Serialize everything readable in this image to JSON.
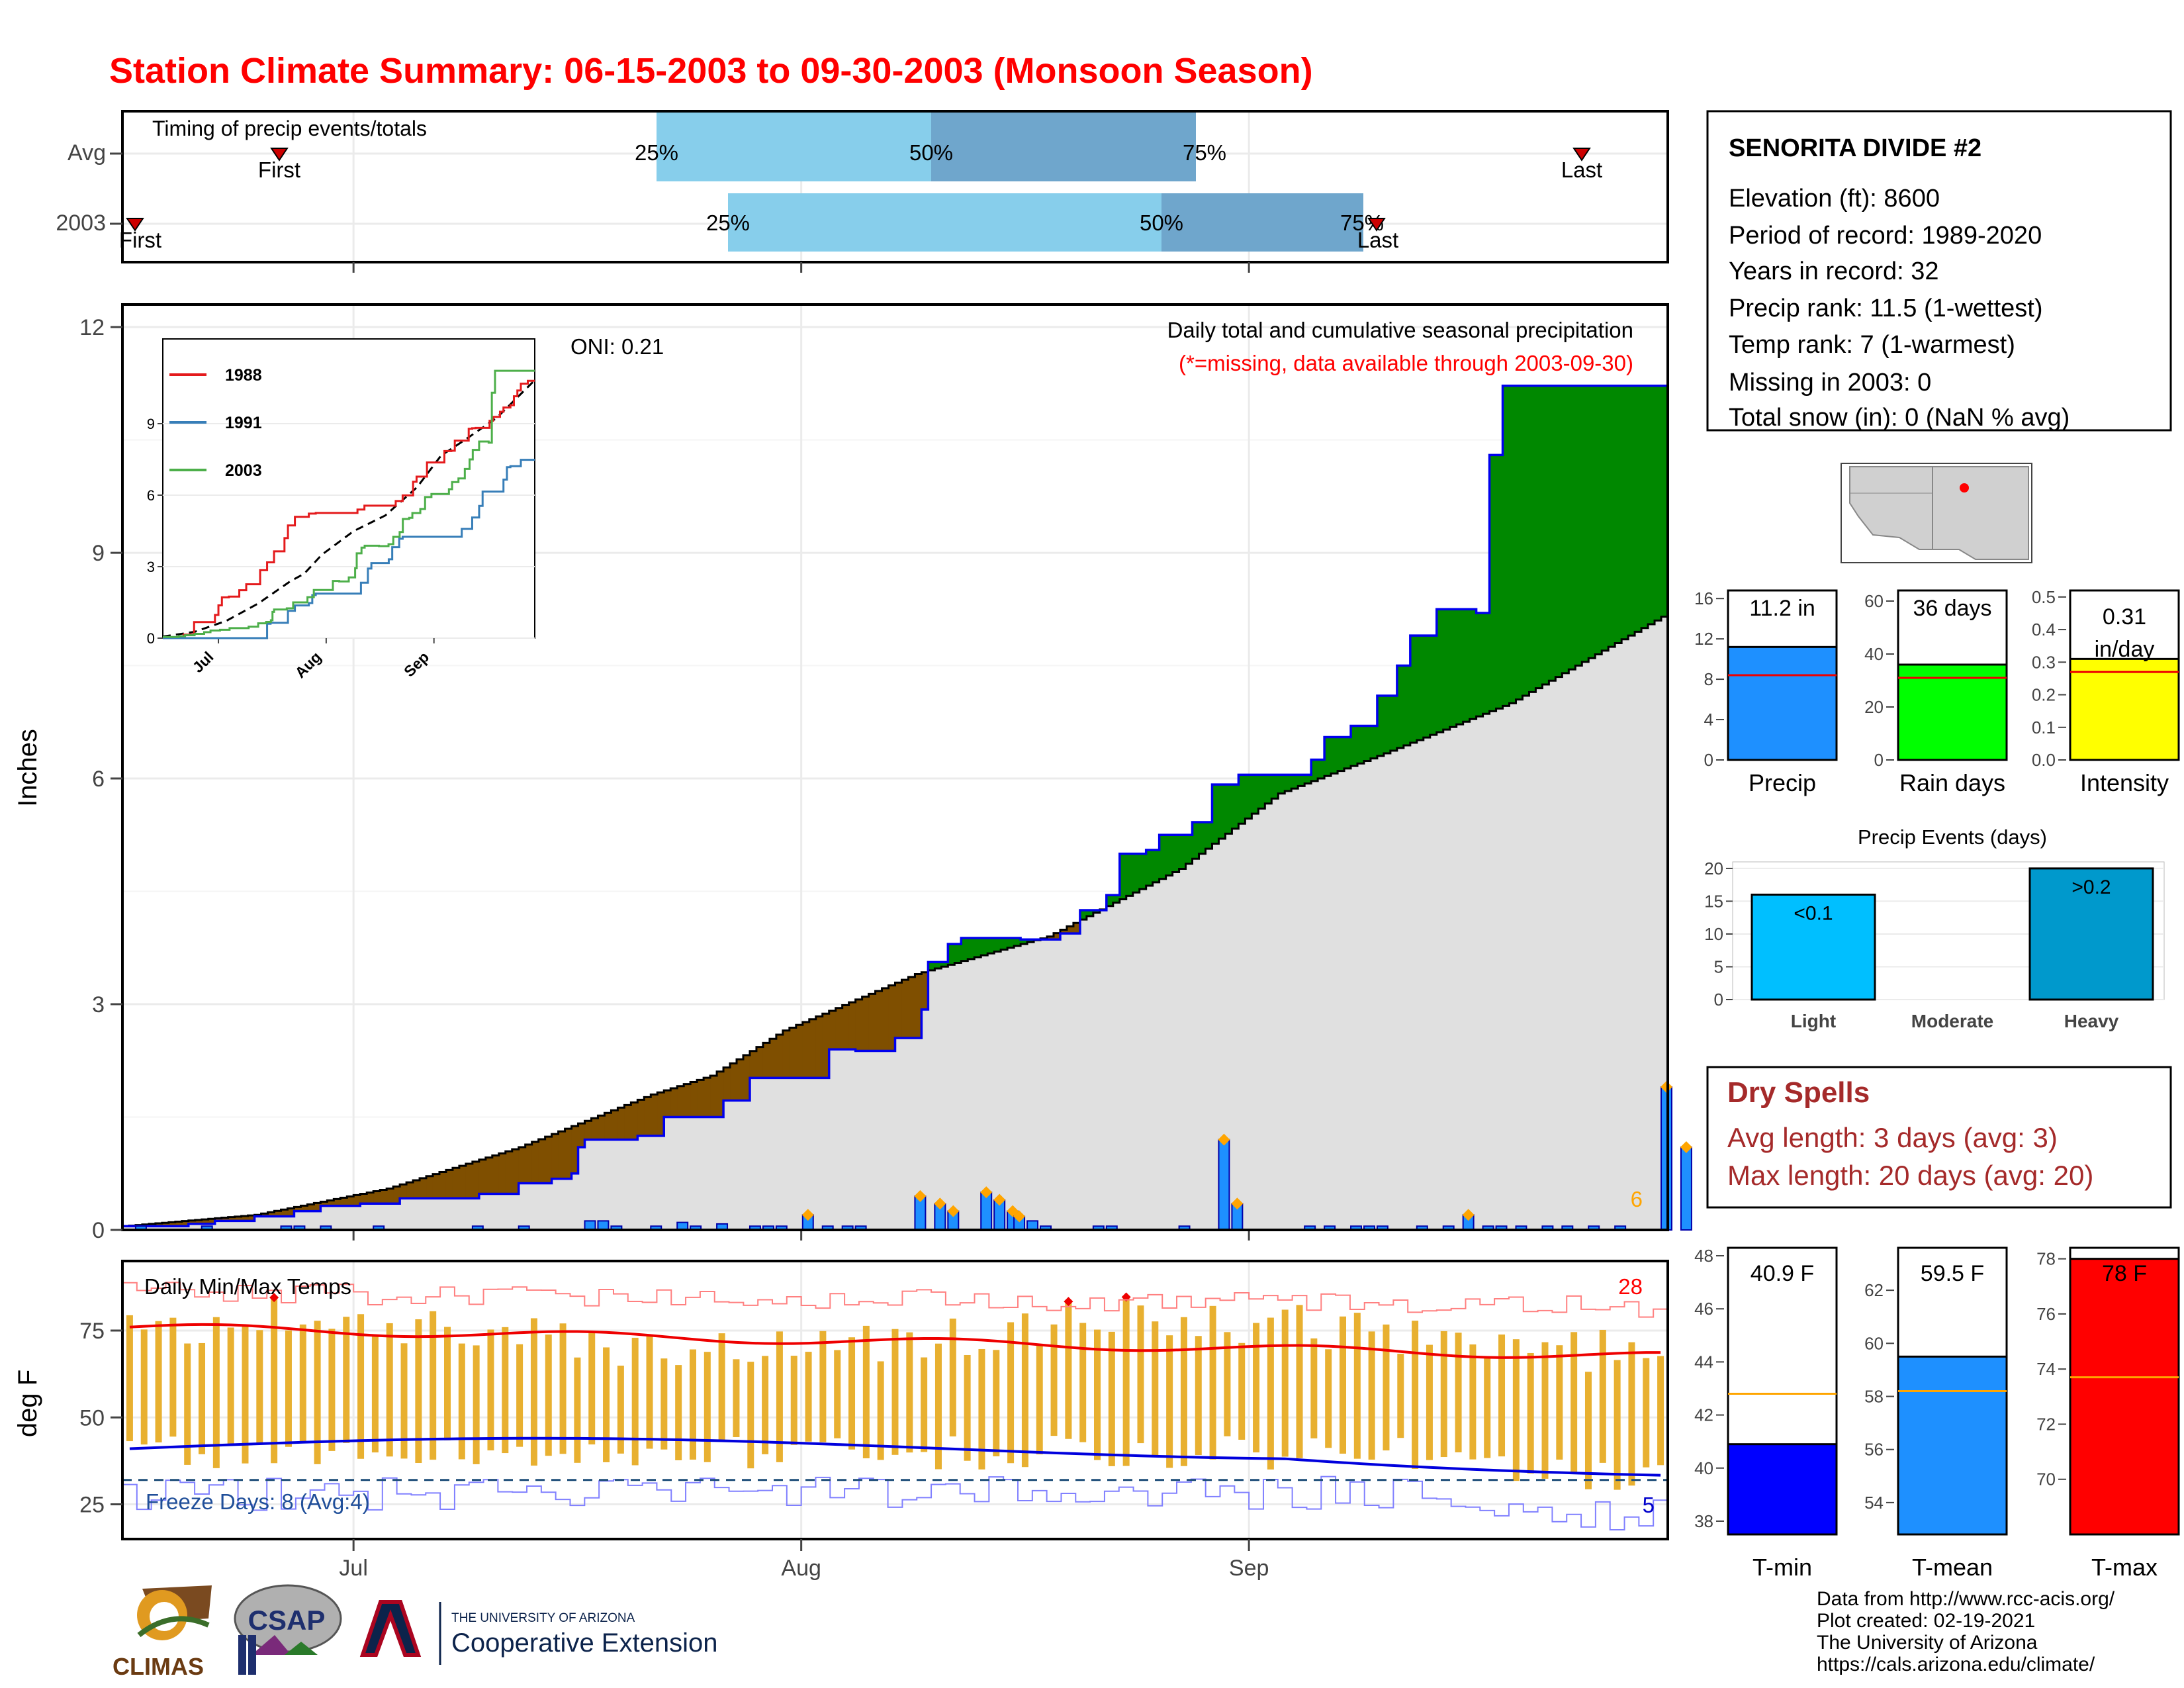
{
  "title": "Station Climate Summary: 06-15-2003 to 09-30-2003 (Monsoon Season)",
  "timing_panel": {
    "label": "Timing of precip events/totals",
    "rows": [
      "Avg",
      "2003"
    ],
    "pct_labels": [
      "25%",
      "50%",
      "75%"
    ],
    "first_label": "First",
    "last_label": "Last"
  },
  "main_panel": {
    "ylabel": "Inches",
    "yticks": [
      "0",
      "3",
      "6",
      "9",
      "12"
    ],
    "oni": "ONI: 0.21",
    "desc": "Daily total and cumulative seasonal precipitation",
    "missing_note": "(*=missing, data available through 2003-09-30)",
    "corner_count": "6"
  },
  "inset": {
    "legend": [
      "1988",
      "1991",
      "2003"
    ],
    "yticks": [
      "0",
      "3",
      "6",
      "9"
    ],
    "xticks": [
      "Jul",
      "Aug",
      "Sep"
    ]
  },
  "temp_panel": {
    "ylabel": "deg F",
    "label": "Daily Min/Max Temps",
    "yticks": [
      "25",
      "50",
      "75"
    ],
    "freeze": "Freeze Days: 8 (Avg:4)",
    "max_count": "28",
    "min_count": "5"
  },
  "xticks": [
    "Jul",
    "Aug",
    "Sep"
  ],
  "station": {
    "name": "SENORITA DIVIDE #2",
    "lines": [
      "Elevation (ft): 8600",
      "Period of record: 1989-2020",
      "Years in record: 32",
      "Precip rank: 11.5 (1-wettest)",
      "Temp rank: 7 (1-warmest)",
      "Missing in 2003: 0",
      "Total snow (in): 0 (NaN % avg)"
    ]
  },
  "summary_bars": {
    "precip": {
      "label": "Precip",
      "value_label": "11.2 in",
      "yticks": [
        "0",
        "4",
        "8",
        "12",
        "16"
      ],
      "color": "#1E90FF"
    },
    "raindays": {
      "label": "Rain days",
      "value_label": "36 days",
      "yticks": [
        "0",
        "20",
        "40",
        "60"
      ],
      "color": "#00FF00"
    },
    "intensity": {
      "label": "Intensity",
      "value_label": "0.31",
      "value_label2": "in/day",
      "yticks": [
        "0.0",
        "0.1",
        "0.2",
        "0.3",
        "0.4",
        "0.5"
      ],
      "color": "#FFFF00"
    }
  },
  "events": {
    "title": "Precip Events (days)",
    "yticks": [
      "0",
      "5",
      "10",
      "15",
      "20"
    ],
    "cats": [
      "Light",
      "Moderate",
      "Heavy"
    ],
    "labels": [
      "<0.1",
      "",
      ">0.2"
    ]
  },
  "dry": {
    "title": "Dry Spells",
    "avg": "Avg length: 3 days (avg: 3)",
    "max": "Max length: 20 days (avg: 20)"
  },
  "temp_bars": {
    "tmin": {
      "label": "T-min",
      "value_label": "40.9 F",
      "yticks": [
        "38",
        "40",
        "42",
        "44",
        "46",
        "48"
      ]
    },
    "tmean": {
      "label": "T-mean",
      "value_label": "59.5 F",
      "yticks": [
        "54",
        "56",
        "58",
        "60",
        "62"
      ]
    },
    "tmax": {
      "label": "T-max",
      "value_label": "78 F",
      "yticks": [
        "70",
        "72",
        "74",
        "76",
        "78"
      ]
    }
  },
  "credits": [
    "Data from http://www.rcc-acis.org/",
    "Plot created: 02-19-2021",
    "The University of Arizona",
    "https://cals.arizona.edu/climate/"
  ],
  "logos": {
    "climas": "CLIMAS",
    "csap": "CSAP",
    "ua_small": "THE UNIVERSITY OF ARIZONA",
    "ua_big": "Cooperative Extension"
  },
  "chart_data": [
    {
      "type": "area",
      "name": "cumulative_precip",
      "xlim": [
        "2003-06-15",
        "2003-09-30"
      ],
      "ylim": [
        0,
        12.3
      ],
      "observed_cumulative": [
        [
          0,
          0.05
        ],
        [
          10,
          0.08
        ],
        [
          14,
          0.12
        ],
        [
          20,
          0.18
        ],
        [
          26,
          0.25
        ],
        [
          30,
          0.32
        ],
        [
          36,
          0.35
        ],
        [
          42,
          0.42
        ],
        [
          54,
          0.48
        ],
        [
          60,
          0.62
        ],
        [
          65,
          0.68
        ],
        [
          68,
          0.75
        ],
        [
          69,
          1.1
        ],
        [
          70,
          1.2
        ],
        [
          78,
          1.25
        ],
        [
          82,
          1.5
        ],
        [
          91,
          1.72
        ],
        [
          95,
          2.02
        ],
        [
          107,
          2.4
        ],
        [
          111,
          2.38
        ],
        [
          117,
          2.55
        ],
        [
          121,
          2.93
        ],
        [
          122,
          3.56
        ],
        [
          125,
          3.8
        ],
        [
          127,
          3.88
        ],
        [
          136,
          3.86
        ],
        [
          142,
          3.94
        ],
        [
          145,
          4.25
        ],
        [
          149,
          4.45
        ],
        [
          151,
          5.0
        ],
        [
          155,
          5.05
        ],
        [
          157,
          5.25
        ],
        [
          162,
          5.42
        ],
        [
          165,
          5.92
        ],
        [
          169,
          6.05
        ],
        [
          176,
          6.05
        ],
        [
          180,
          6.25
        ],
        [
          182,
          6.55
        ],
        [
          186,
          6.7
        ],
        [
          190,
          7.1
        ],
        [
          193,
          7.5
        ],
        [
          195,
          7.9
        ],
        [
          199,
          8.25
        ],
        [
          205,
          8.2
        ],
        [
          207,
          10.3
        ],
        [
          209,
          11.22
        ],
        [
          234,
          11.22
        ]
      ],
      "avg_cumulative": [
        [
          0,
          0.05
        ],
        [
          20,
          0.2
        ],
        [
          40,
          0.55
        ],
        [
          60,
          1.1
        ],
        [
          80,
          1.8
        ],
        [
          89,
          2.05
        ],
        [
          100,
          2.65
        ],
        [
          120,
          3.4
        ],
        [
          140,
          3.9
        ],
        [
          160,
          4.8
        ],
        [
          175,
          5.8
        ],
        [
          190,
          6.3
        ],
        [
          210,
          7.0
        ],
        [
          234,
          8.2
        ]
      ],
      "daily_precip": [
        [
          2,
          0.05
        ],
        [
          12,
          0.05
        ],
        [
          24,
          0.05
        ],
        [
          26,
          0.05
        ],
        [
          30,
          0.05
        ],
        [
          38,
          0.05
        ],
        [
          53,
          0.05
        ],
        [
          60,
          0.05
        ],
        [
          70,
          0.12
        ],
        [
          72,
          0.12
        ],
        [
          74,
          0.05
        ],
        [
          80,
          0.05
        ],
        [
          84,
          0.1
        ],
        [
          86,
          0.05
        ],
        [
          90,
          0.08
        ],
        [
          95,
          0.05
        ],
        [
          97,
          0.05
        ],
        [
          99,
          0.05
        ],
        [
          103,
          0.2
        ],
        [
          106,
          0.05
        ],
        [
          109,
          0.05
        ],
        [
          111,
          0.05
        ],
        [
          120,
          0.45
        ],
        [
          123,
          0.35
        ],
        [
          125,
          0.25
        ],
        [
          130,
          0.5
        ],
        [
          132,
          0.4
        ],
        [
          134,
          0.25
        ],
        [
          135,
          0.18
        ],
        [
          137,
          0.12
        ],
        [
          139,
          0.05
        ],
        [
          147,
          0.05
        ],
        [
          149,
          0.05
        ],
        [
          160,
          0.05
        ],
        [
          166,
          1.2
        ],
        [
          168,
          0.35
        ],
        [
          179,
          0.05
        ],
        [
          182,
          0.05
        ],
        [
          186,
          0.05
        ],
        [
          188,
          0.05
        ],
        [
          190,
          0.05
        ],
        [
          196,
          0.05
        ],
        [
          200,
          0.05
        ],
        [
          203,
          0.2
        ],
        [
          206,
          0.05
        ],
        [
          208,
          0.05
        ],
        [
          211,
          0.05
        ],
        [
          215,
          0.05
        ],
        [
          218,
          0.05
        ],
        [
          222,
          0.05
        ],
        [
          226,
          0.05
        ],
        [
          233,
          1.9
        ],
        [
          236,
          1.1
        ]
      ],
      "ylabel": "Inches"
    },
    {
      "type": "line",
      "name": "temperatures",
      "ylim": [
        15,
        95
      ],
      "tmax_avg_range": [
        70,
        78
      ],
      "tmin_avg_range": [
        36,
        48
      ],
      "freeze_line": 32,
      "ylabel": "deg F"
    },
    {
      "type": "bar",
      "name": "summary",
      "categories": [
        "Precip",
        "Rain days",
        "Intensity"
      ],
      "values": [
        11.2,
        36,
        0.31
      ],
      "averages": [
        8.4,
        31,
        0.27
      ]
    },
    {
      "type": "bar",
      "name": "precip_events",
      "categories": [
        "Light",
        "Moderate",
        "Heavy"
      ],
      "values": [
        16,
        0,
        20
      ]
    },
    {
      "type": "bar",
      "name": "temp_summary",
      "categories": [
        "T-min",
        "T-mean",
        "T-max"
      ],
      "values": [
        40.9,
        59.5,
        78.0
      ],
      "averages": [
        42.8,
        58.2,
        73.7
      ]
    }
  ]
}
